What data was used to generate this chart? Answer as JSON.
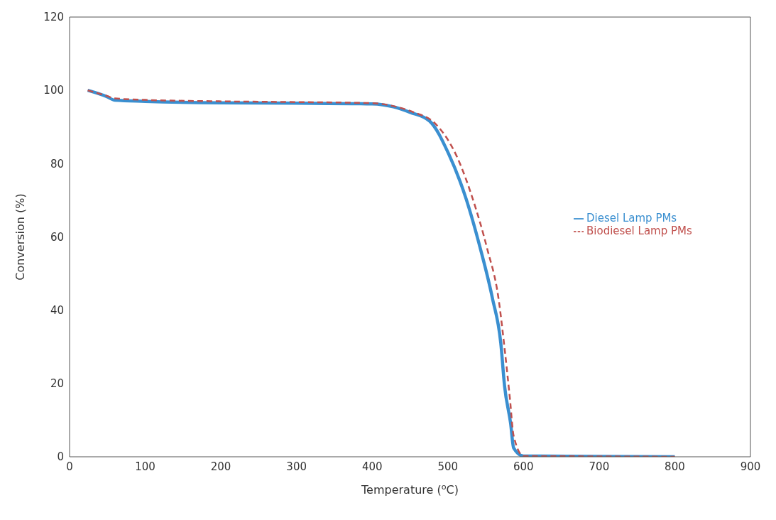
{
  "chart_data": {
    "type": "line",
    "xlabel": "Temperature ($^{o}$C)",
    "ylabel": "Conversion (%)",
    "xlim": [
      0,
      900
    ],
    "xticks": [
      0,
      100,
      200,
      300,
      400,
      500,
      600,
      700,
      800,
      900
    ],
    "ylim": [
      0,
      120
    ],
    "yticks": [
      0,
      20,
      40,
      60,
      80,
      100,
      120
    ],
    "grid": false,
    "legend": "right",
    "marker": "none",
    "series": [
      {
        "name": "Diesel Lamp PMs",
        "color": "#3a8fd0",
        "line_style": "solid",
        "x": [
          24,
          49,
          60,
          100,
          200,
          300,
          400,
          428,
          450,
          476,
          501,
          524,
          543,
          559,
          570,
          575,
          583,
          587,
          600,
          700,
          800
        ],
        "values": [
          100,
          98.3,
          97.3,
          97,
          96.6,
          96.5,
          96.3,
          95.5,
          94,
          91.6,
          82.7,
          70.5,
          56.8,
          43.2,
          31,
          19.3,
          9.1,
          2.4,
          0.2,
          0.1,
          0
        ]
      },
      {
        "name": "Biodiesel Lamp PMs",
        "color": "#c0504d",
        "line_style": "dashed",
        "x": [
          24,
          49,
          60,
          100,
          200,
          300,
          400,
          430,
          455,
          484,
          512,
          534,
          552,
          567,
          575,
          582,
          587,
          600,
          700,
          800
        ],
        "values": [
          100,
          98.5,
          97.8,
          97.4,
          97,
          96.8,
          96.5,
          95.6,
          94,
          90.8,
          81.9,
          69.7,
          56.8,
          43.2,
          29.6,
          16,
          5.7,
          0.2,
          0.1,
          0
        ]
      }
    ]
  }
}
